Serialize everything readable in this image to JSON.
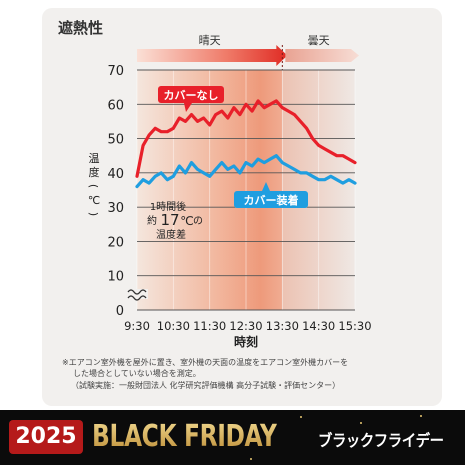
{
  "section_title": "遮熱性",
  "chart_data": {
    "type": "line",
    "ylabel_chars": [
      "温",
      "度",
      "(",
      "℃",
      ")"
    ],
    "xlabel": "時刻",
    "x_ticks": [
      "9:30",
      "10:30",
      "11:30",
      "12:30",
      "13:30",
      "14:30",
      "15:30"
    ],
    "y_ticks": [
      0,
      10,
      20,
      30,
      40,
      50,
      60,
      70
    ],
    "ylim": [
      0,
      70
    ],
    "y_axis_break": true,
    "weather_bands": [
      {
        "label": "晴天",
        "from": "9:30",
        "to": "13:30"
      },
      {
        "label": "曇天",
        "from": "13:30",
        "to": "15:30"
      }
    ],
    "series": [
      {
        "name": "カバーなし",
        "color": "#e8202a",
        "x": [
          "9:30",
          "9:40",
          "9:50",
          "10:00",
          "10:10",
          "10:20",
          "10:30",
          "10:40",
          "10:50",
          "11:00",
          "11:10",
          "11:20",
          "11:30",
          "11:40",
          "11:50",
          "12:00",
          "12:10",
          "12:20",
          "12:30",
          "12:40",
          "12:50",
          "13:00",
          "13:10",
          "13:20",
          "13:30",
          "13:40",
          "13:50",
          "14:00",
          "14:10",
          "14:20",
          "14:30",
          "14:40",
          "14:50",
          "15:00",
          "15:10",
          "15:20",
          "15:30"
        ],
        "values": [
          39,
          48,
          51,
          53,
          52,
          52,
          53,
          56,
          55,
          57,
          55,
          56,
          54,
          57,
          58,
          56,
          59,
          57,
          60,
          58,
          61,
          59,
          60,
          61,
          59,
          58,
          57,
          55,
          53,
          50,
          48,
          47,
          46,
          45,
          45,
          44,
          43
        ]
      },
      {
        "name": "カバー装着",
        "color": "#1f9ee0",
        "x": [
          "9:30",
          "9:40",
          "9:50",
          "10:00",
          "10:10",
          "10:20",
          "10:30",
          "10:40",
          "10:50",
          "11:00",
          "11:10",
          "11:20",
          "11:30",
          "11:40",
          "11:50",
          "12:00",
          "12:10",
          "12:20",
          "12:30",
          "12:40",
          "12:50",
          "13:00",
          "13:10",
          "13:20",
          "13:30",
          "13:40",
          "13:50",
          "14:00",
          "14:10",
          "14:20",
          "14:30",
          "14:40",
          "14:50",
          "15:00",
          "15:10",
          "15:20",
          "15:30"
        ],
        "values": [
          36,
          38,
          37,
          39,
          40,
          38,
          39,
          42,
          40,
          43,
          41,
          40,
          39,
          41,
          43,
          41,
          42,
          40,
          43,
          42,
          44,
          43,
          44,
          45,
          43,
          42,
          41,
          40,
          40,
          39,
          38,
          38,
          39,
          38,
          37,
          38,
          37
        ]
      }
    ],
    "annotations": [
      {
        "lines": [
          "1時間後",
          "約",
          "17",
          "℃",
          "の",
          "温度差"
        ]
      }
    ]
  },
  "note_lines": [
    "※エアコン室外機を屋外に置き、室外機の天面の温度をエアコン室外機カバーを",
    "した場合としていない場合を測定。",
    "（試験実施：一般財団法人 化学研究評価機構 高分子試験・評価センター）"
  ],
  "banner": {
    "year": "2025",
    "title": "BLACK FRIDAY",
    "subtitle_jp": "ブラックフライデー",
    "colors": {
      "year_bg": "#b51a1a",
      "gold": "#d9b45a",
      "bg": "#0b0b0b"
    }
  }
}
